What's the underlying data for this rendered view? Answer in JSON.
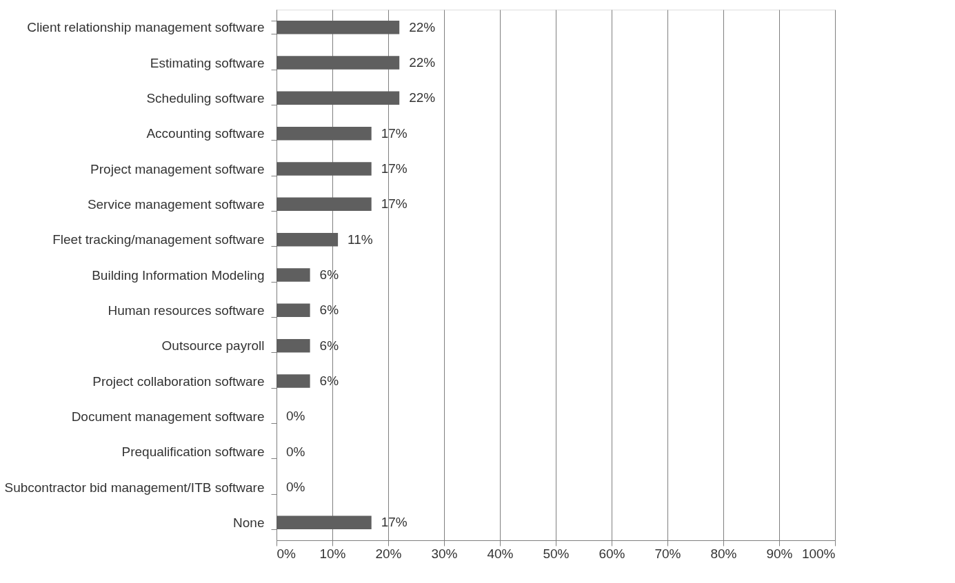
{
  "chart_data": {
    "type": "bar",
    "orientation": "horizontal",
    "categories": [
      "Client relationship management software",
      "Estimating software",
      "Scheduling software",
      "Accounting software",
      "Project management software",
      "Service management software",
      "Fleet tracking/management software",
      "Building Information Modeling",
      "Human resources software",
      "Outsource payroll",
      "Project collaboration software",
      "Document management software",
      "Prequalification software",
      "Subcontractor bid management/ITB software",
      "None"
    ],
    "values": [
      22,
      22,
      22,
      17,
      17,
      17,
      11,
      6,
      6,
      6,
      6,
      0,
      0,
      0,
      17
    ],
    "value_labels": [
      "22%",
      "22%",
      "22%",
      "17%",
      "17%",
      "17%",
      "11%",
      "6%",
      "6%",
      "6%",
      "6%",
      "0%",
      "0%",
      "0%",
      "17%"
    ],
    "color": "#5f5f5f",
    "xlim": [
      0,
      100
    ],
    "xticks": [
      {
        "value": 0,
        "label": "0%"
      },
      {
        "value": 10,
        "label": "10%"
      },
      {
        "value": 20,
        "label": "20%"
      },
      {
        "value": 30,
        "label": "30%"
      },
      {
        "value": 40,
        "label": "40%"
      },
      {
        "value": 50,
        "label": "50%"
      },
      {
        "value": 60,
        "label": "60%"
      },
      {
        "value": 70,
        "label": "70%"
      },
      {
        "value": 80,
        "label": "80%"
      },
      {
        "value": 90,
        "label": "90%"
      },
      {
        "value": 100,
        "label": "100%"
      }
    ],
    "grid": "x"
  }
}
